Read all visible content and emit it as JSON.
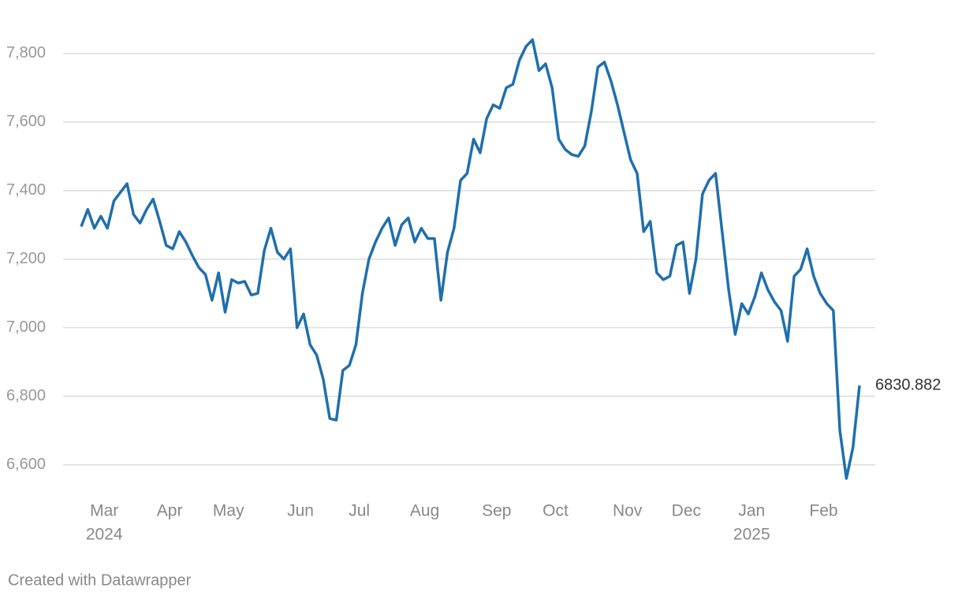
{
  "chart_data": {
    "type": "line",
    "categories": [
      null,
      null,
      null,
      null,
      "Mar",
      null,
      null,
      null,
      null,
      null,
      null,
      null,
      null,
      null,
      "Apr",
      null,
      null,
      null,
      null,
      null,
      null,
      null,
      null,
      "May",
      null,
      null,
      null,
      null,
      null,
      null,
      null,
      null,
      null,
      null,
      "Jun",
      null,
      null,
      null,
      null,
      null,
      null,
      null,
      null,
      "Jul",
      null,
      null,
      null,
      null,
      null,
      null,
      null,
      null,
      null,
      "Aug",
      null,
      null,
      null,
      null,
      null,
      null,
      null,
      null,
      null,
      null,
      "Sep",
      null,
      null,
      null,
      null,
      null,
      null,
      null,
      null,
      "Oct",
      null,
      null,
      null,
      null,
      null,
      null,
      null,
      null,
      null,
      null,
      "Nov",
      null,
      null,
      null,
      null,
      null,
      null,
      null,
      null,
      "Dec",
      null,
      null,
      null,
      null,
      null,
      null,
      null,
      null,
      null,
      "Jan",
      null,
      null,
      null,
      null,
      null,
      null,
      null,
      null,
      null,
      null,
      "Feb",
      null,
      null,
      null,
      null,
      null
    ],
    "x_sublabels": [
      null,
      null,
      null,
      null,
      "2024",
      null,
      null,
      null,
      null,
      null,
      null,
      null,
      null,
      null,
      null,
      null,
      null,
      null,
      null,
      null,
      null,
      null,
      null,
      null,
      null,
      null,
      null,
      null,
      null,
      null,
      null,
      null,
      null,
      null,
      null,
      null,
      null,
      null,
      null,
      null,
      null,
      null,
      null,
      null,
      null,
      null,
      null,
      null,
      null,
      null,
      null,
      null,
      null,
      null,
      null,
      null,
      null,
      null,
      null,
      null,
      null,
      null,
      null,
      null,
      null,
      null,
      null,
      null,
      null,
      null,
      null,
      null,
      null,
      null,
      null,
      null,
      null,
      null,
      null,
      null,
      null,
      null,
      null,
      null,
      null,
      null,
      null,
      null,
      null,
      null,
      null,
      null,
      null,
      null,
      null,
      null,
      null,
      null,
      null,
      null,
      null,
      null,
      null,
      "2025",
      null,
      null,
      null,
      null,
      null,
      null,
      null,
      null,
      null,
      null,
      null,
      null,
      null,
      null,
      null,
      null
    ],
    "series": [
      {
        "color": "#1f6fad",
        "values": [
          7295,
          7345,
          7290,
          7325,
          7290,
          7370,
          7395,
          7420,
          7330,
          7305,
          7345,
          7375,
          7310,
          7240,
          7230,
          7280,
          7250,
          7210,
          7175,
          7155,
          7080,
          7160,
          7045,
          7140,
          7130,
          7135,
          7095,
          7100,
          7225,
          7290,
          7220,
          7200,
          7230,
          7000,
          7040,
          6950,
          6920,
          6850,
          6735,
          6730,
          6875,
          6890,
          6950,
          7100,
          7200,
          7250,
          7290,
          7320,
          7240,
          7300,
          7320,
          7250,
          7290,
          7260,
          7260,
          7080,
          7220,
          7290,
          7430,
          7450,
          7550,
          7510,
          7610,
          7650,
          7640,
          7700,
          7710,
          7780,
          7820,
          7840,
          7750,
          7770,
          7700,
          7550,
          7520,
          7505,
          7500,
          7530,
          7630,
          7760,
          7775,
          7720,
          7650,
          7570,
          7490,
          7450,
          7280,
          7310,
          7160,
          7140,
          7150,
          7240,
          7250,
          7100,
          7200,
          7390,
          7430,
          7450,
          7280,
          7110,
          6980,
          7070,
          7040,
          7090,
          7160,
          7110,
          7075,
          7050,
          6960,
          7150,
          7170,
          7230,
          7150,
          7100,
          7070,
          7050,
          6700,
          6560,
          6650,
          6830.882
        ]
      }
    ],
    "ylim": [
      6530,
      7910
    ],
    "yticks": [
      {
        "value": 6600,
        "label": "6,600"
      },
      {
        "value": 6800,
        "label": "6,800"
      },
      {
        "value": 7000,
        "label": "7,000"
      },
      {
        "value": 7200,
        "label": "7,200"
      },
      {
        "value": 7400,
        "label": "7,400"
      },
      {
        "value": 7600,
        "label": "7,600"
      },
      {
        "value": 7800,
        "label": "7,800"
      }
    ],
    "grid": true,
    "credit": "Created with Datawrapper"
  }
}
